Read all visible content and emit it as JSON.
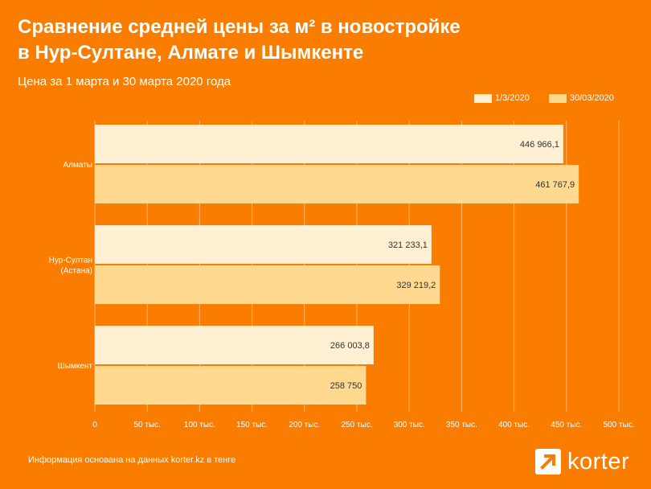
{
  "title_lines": [
    "Сравнение средней цены за м² в новостройке",
    "в Нур-Султане, Алмате и Шымкенте"
  ],
  "subtitle": "Цена за 1 марта  и 30 марта 2020 года",
  "footnote": "Информация основана на данных korter.kz в тенге",
  "logo": {
    "text": "korter",
    "icon": "arrow-up-right-icon"
  },
  "colors": {
    "background": "#fb7d00",
    "series_1": "#fff0d4",
    "series_2": "#ffd98f",
    "gridline": "#ffffff"
  },
  "chart_data": {
    "type": "bar",
    "orientation": "horizontal",
    "categories": [
      [
        "Алматы"
      ],
      [
        "Нур-Султан",
        "(Астана)"
      ],
      [
        "Шымкент"
      ]
    ],
    "series": [
      {
        "name": "1/3/2020",
        "values": [
          446966.1,
          321233.1,
          266003.8
        ],
        "labels": [
          "446 966,1",
          "321 233,1",
          "266 003,8"
        ]
      },
      {
        "name": "30/03/2020",
        "values": [
          461767.9,
          329219.2,
          258750
        ],
        "labels": [
          "461 767,9",
          "329 219,2",
          "258 750"
        ]
      }
    ],
    "xlim": [
      0,
      500000
    ],
    "xticks": [
      0,
      50000,
      100000,
      150000,
      200000,
      250000,
      300000,
      350000,
      400000,
      450000,
      500000
    ],
    "xtick_labels": [
      "0",
      "50 тыс.",
      "100 тыс.",
      "150 тыс.",
      "200 тыс.",
      "250 тыс.",
      "300 тыс.",
      "350 тыс.",
      "400 тыс.",
      "450 тыс.",
      "500 тыс."
    ],
    "grid": true,
    "legend_position": "top-right"
  }
}
